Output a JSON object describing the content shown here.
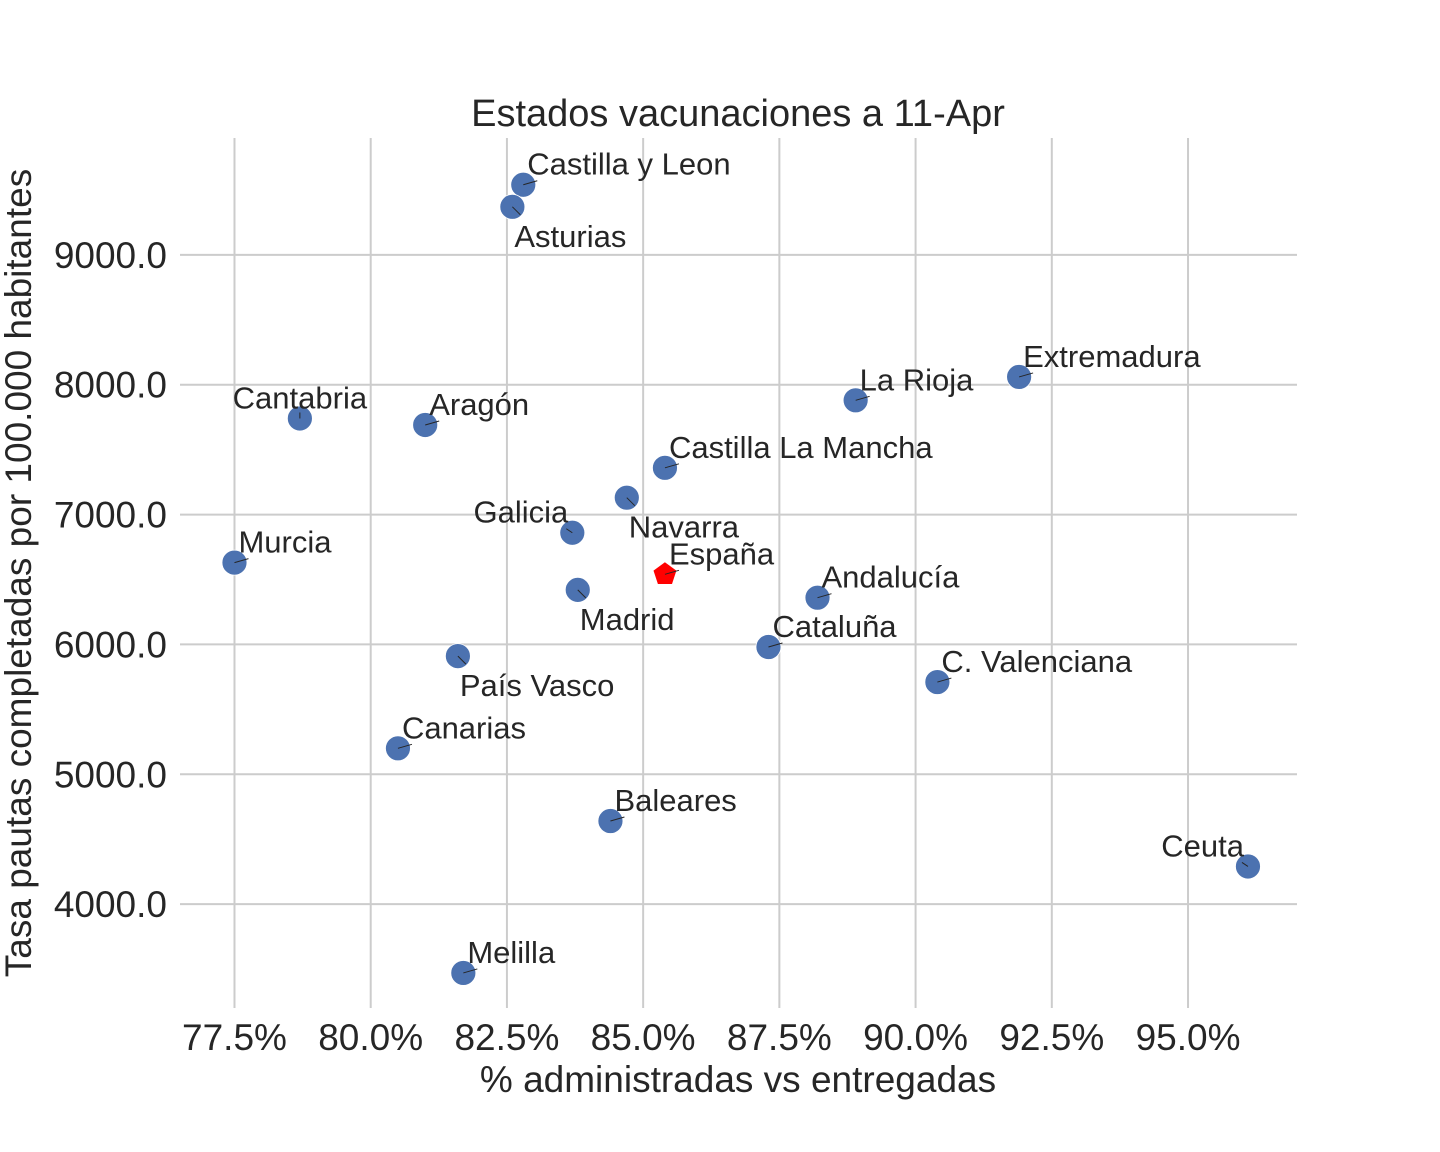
{
  "chart_data": {
    "type": "scatter",
    "title": "Estados vacunaciones a 11-Apr",
    "xlabel": "% administradas vs entregadas",
    "ylabel": "Tasa pautas completadas por 100.000 habitantes",
    "xlim": [
      76.5,
      97.0
    ],
    "ylim": [
      3200,
      9900
    ],
    "xticks": [
      77.5,
      80.0,
      82.5,
      85.0,
      87.5,
      90.0,
      92.5,
      95.0
    ],
    "xtick_labels": [
      "77.5%",
      "80.0%",
      "82.5%",
      "85.0%",
      "87.5%",
      "90.0%",
      "92.5%",
      "95.0%"
    ],
    "yticks": [
      4000,
      5000,
      6000,
      7000,
      8000,
      9000
    ],
    "ytick_labels": [
      "4000.0",
      "5000.0",
      "6000.0",
      "7000.0",
      "8000.0",
      "9000.0"
    ],
    "grid": true,
    "colors": {
      "point": "#4c72b0",
      "highlight": "#ff0000",
      "text": "#262626",
      "grid": "#cccccc"
    },
    "points": [
      {
        "label": "Castilla y Leon",
        "x": 82.8,
        "y": 9540,
        "anchor": "ne"
      },
      {
        "label": "Asturias",
        "x": 82.6,
        "y": 9370,
        "anchor": "se"
      },
      {
        "label": "Extremadura",
        "x": 91.9,
        "y": 8060,
        "anchor": "ne"
      },
      {
        "label": "La Rioja",
        "x": 88.9,
        "y": 7880,
        "anchor": "ne"
      },
      {
        "label": "Cantabria",
        "x": 78.7,
        "y": 7740,
        "anchor": "n"
      },
      {
        "label": "Aragón",
        "x": 81.0,
        "y": 7690,
        "anchor": "ne"
      },
      {
        "label": "Castilla La Mancha",
        "x": 85.4,
        "y": 7360,
        "anchor": "ne"
      },
      {
        "label": "Navarra",
        "x": 84.7,
        "y": 7130,
        "anchor": "se"
      },
      {
        "label": "Galicia",
        "x": 83.7,
        "y": 6860,
        "anchor": "nw"
      },
      {
        "label": "Murcia",
        "x": 77.5,
        "y": 6630,
        "anchor": "ne"
      },
      {
        "label": "España",
        "x": 85.4,
        "y": 6540,
        "anchor": "ne",
        "highlight": true
      },
      {
        "label": "Madrid",
        "x": 83.8,
        "y": 6420,
        "anchor": "se"
      },
      {
        "label": "Andalucía",
        "x": 88.2,
        "y": 6360,
        "anchor": "ne"
      },
      {
        "label": "Cataluña",
        "x": 87.3,
        "y": 5980,
        "anchor": "ne"
      },
      {
        "label": "País Vasco",
        "x": 81.6,
        "y": 5910,
        "anchor": "se"
      },
      {
        "label": "C. Valenciana",
        "x": 90.4,
        "y": 5710,
        "anchor": "ne"
      },
      {
        "label": "Canarias",
        "x": 80.5,
        "y": 5200,
        "anchor": "ne"
      },
      {
        "label": "Baleares",
        "x": 84.4,
        "y": 4640,
        "anchor": "ne"
      },
      {
        "label": "Ceuta",
        "x": 96.1,
        "y": 4290,
        "anchor": "nw"
      },
      {
        "label": "Melilla",
        "x": 81.7,
        "y": 3470,
        "anchor": "ne"
      }
    ]
  }
}
